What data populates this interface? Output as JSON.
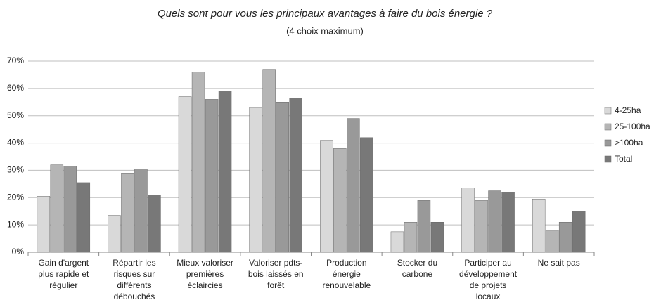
{
  "chart_data": {
    "type": "bar",
    "title": "Quels sont pour vous les principaux avantages à faire du bois énergie ?",
    "subtitle": "(4 choix maximum)",
    "categories": [
      "Gain d'argent plus rapide et régulier",
      "Répartir les risques sur différents débouchés",
      "Mieux valoriser premières éclaircies",
      "Valoriser pdts-bois laissés en forêt",
      "Production énergie renouvelable",
      "Stocker du carbone",
      "Participer au développement de projets locaux",
      "Ne sait pas"
    ],
    "series": [
      {
        "name": "4-25ha",
        "color": "#d9d9d9",
        "values": [
          20.5,
          13.5,
          57,
          53,
          41,
          7.5,
          23.5,
          19.5
        ]
      },
      {
        "name": "25-100ha",
        "color": "#b5b5b5",
        "values": [
          32,
          29,
          66,
          67,
          38,
          11,
          19,
          8
        ]
      },
      {
        "name": ">100ha",
        "color": "#999999",
        "values": [
          31.5,
          30.5,
          56,
          55,
          49,
          19,
          22.5,
          11
        ]
      },
      {
        "name": "Total",
        "color": "#787878",
        "values": [
          25.5,
          21,
          59,
          56.5,
          42,
          11,
          22,
          15
        ]
      }
    ],
    "ylim": [
      0,
      70
    ],
    "yticks": [
      {
        "value": 0,
        "label": "0%"
      },
      {
        "value": 10,
        "label": "10%"
      },
      {
        "value": 20,
        "label": "20%"
      },
      {
        "value": 30,
        "label": "30%"
      },
      {
        "value": 40,
        "label": "40%"
      },
      {
        "value": 50,
        "label": "50%"
      },
      {
        "value": 60,
        "label": "60%"
      },
      {
        "value": 70,
        "label": "70%"
      }
    ],
    "grid": true,
    "legend": "right"
  }
}
